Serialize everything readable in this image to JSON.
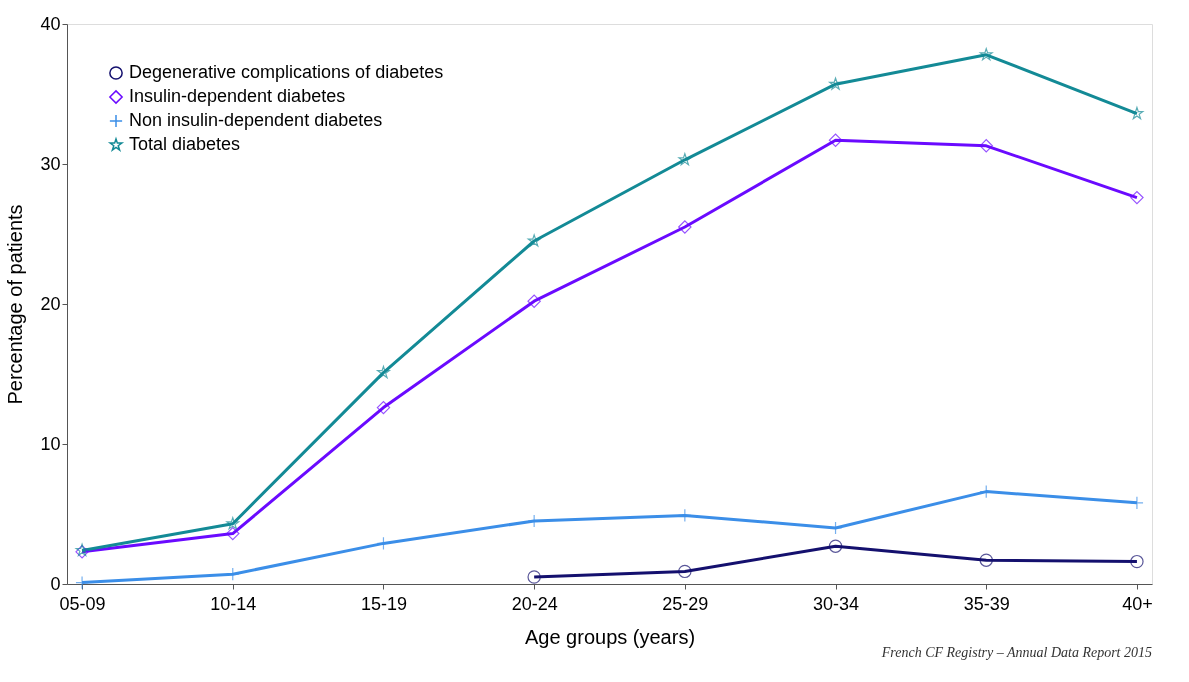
{
  "chart_data": {
    "type": "line",
    "xlabel": "Age groups (years)",
    "ylabel": "Percentage of patients",
    "categories": [
      "05-09",
      "10-14",
      "15-19",
      "20-24",
      "25-29",
      "30-34",
      "35-39",
      "40+"
    ],
    "series": [
      {
        "name": "Degenerative complications of diabetes",
        "color": "#14106e",
        "marker": "circle",
        "values": [
          null,
          null,
          null,
          0.5,
          0.9,
          2.7,
          1.7,
          1.6
        ]
      },
      {
        "name": "Insulin-dependent diabetes",
        "color": "#6a0aff",
        "marker": "diamond",
        "values": [
          2.3,
          3.6,
          12.6,
          20.2,
          25.5,
          31.7,
          31.3,
          27.6
        ]
      },
      {
        "name": "Non insulin-dependent diabetes",
        "color": "#3b8ee8",
        "marker": "cross",
        "values": [
          0.1,
          0.7,
          2.9,
          4.5,
          4.9,
          4.0,
          6.6,
          5.8
        ]
      },
      {
        "name": "Total diabetes",
        "color": "#138a96",
        "marker": "star",
        "values": [
          2.4,
          4.3,
          15.1,
          24.5,
          30.3,
          35.7,
          37.8,
          33.6
        ]
      }
    ],
    "ylim": [
      0,
      40
    ],
    "yticks": [
      0,
      10,
      20,
      30,
      40
    ],
    "grid": false,
    "legend": "top left",
    "line_style": "solid",
    "annotations": [
      "French CF Registry – Annual Data Report 2015"
    ]
  }
}
